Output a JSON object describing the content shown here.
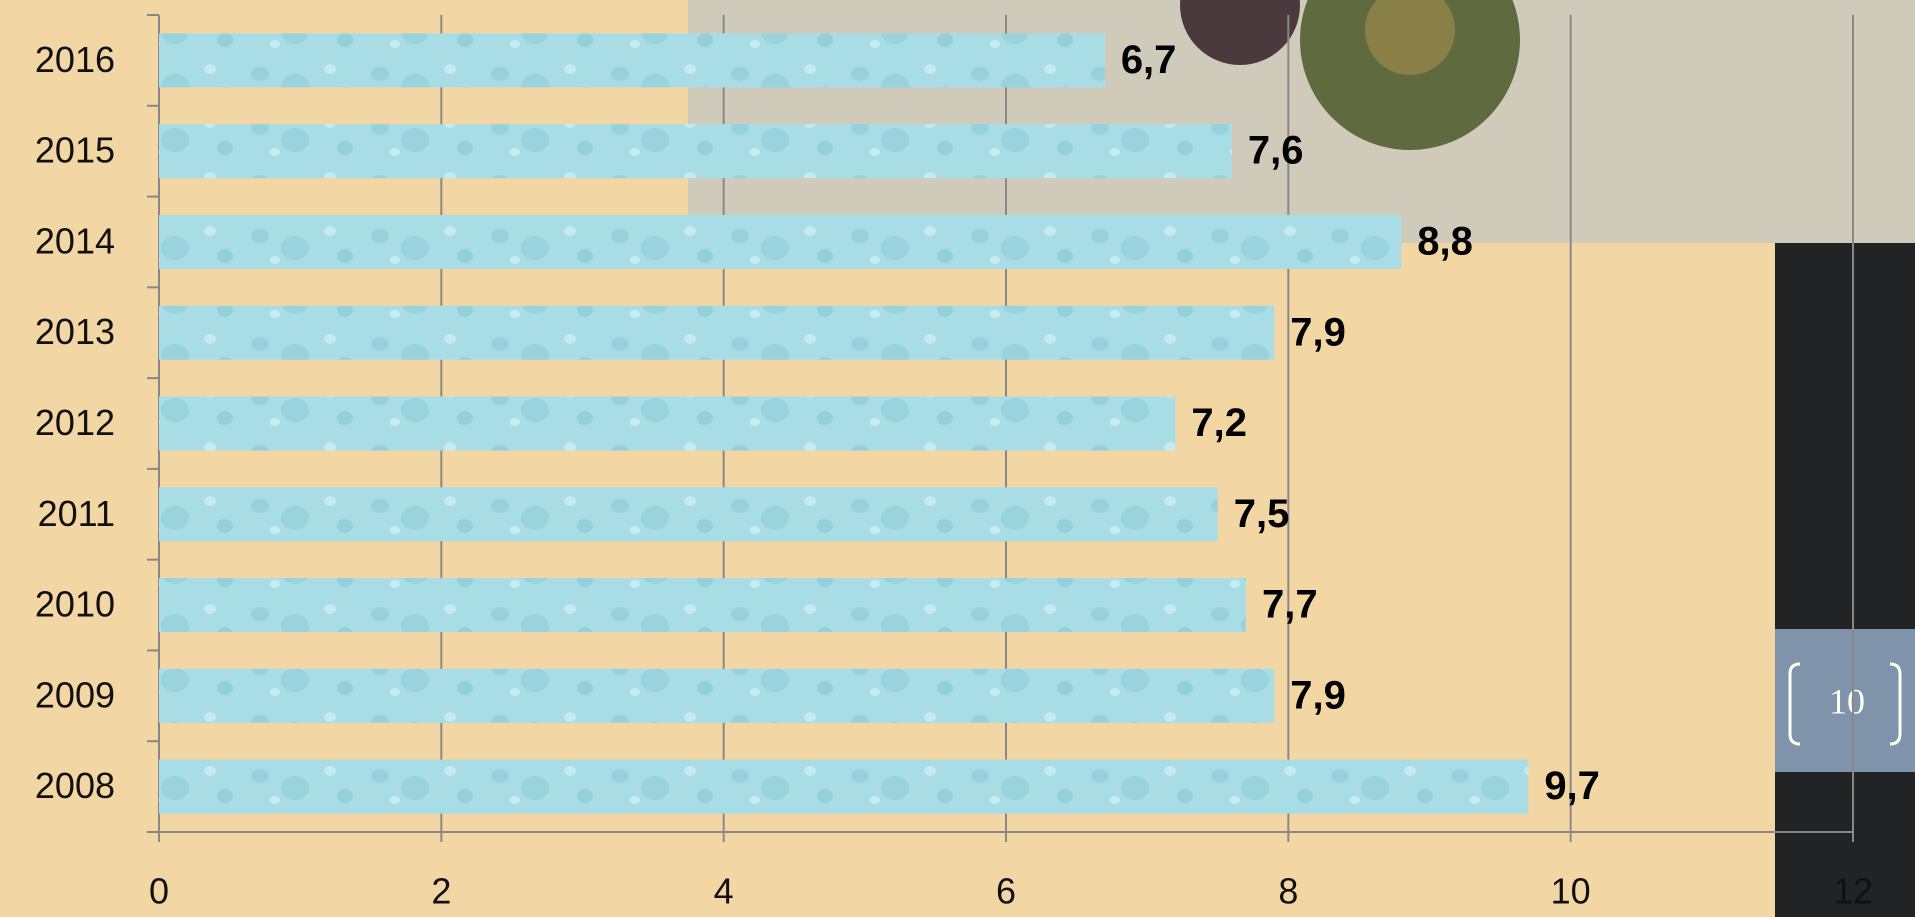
{
  "chart_data": {
    "type": "bar",
    "orientation": "horizontal",
    "categories": [
      "2016",
      "2015",
      "2014",
      "2013",
      "2012",
      "2011",
      "2010",
      "2009",
      "2008"
    ],
    "values": [
      6.7,
      7.6,
      8.8,
      7.9,
      7.2,
      7.5,
      7.7,
      7.9,
      9.7
    ],
    "value_labels": [
      "6,7",
      "7,6",
      "8,8",
      "7,9",
      "7,2",
      "7,5",
      "7,7",
      "7,9",
      "9,7"
    ],
    "color": "#a9dde6",
    "xlim": [
      0,
      12
    ],
    "xticks": [
      0,
      2,
      4,
      6,
      8,
      10,
      12
    ],
    "grid": true
  },
  "slide_number": "10"
}
